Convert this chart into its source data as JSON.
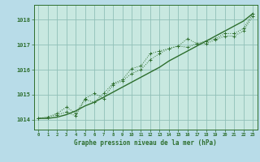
{
  "background_color": "#b8dce8",
  "plot_bg_color": "#c8e8e0",
  "grid_color": "#90c0b8",
  "line_color": "#2d6e2d",
  "xlabel": "Graphe pression niveau de la mer (hPa)",
  "xlim": [
    -0.5,
    23.5
  ],
  "ylim": [
    1013.6,
    1018.6
  ],
  "yticks": [
    1014,
    1015,
    1016,
    1017,
    1018
  ],
  "xticks": [
    0,
    1,
    2,
    3,
    4,
    5,
    6,
    7,
    8,
    9,
    10,
    11,
    12,
    13,
    14,
    15,
    16,
    17,
    18,
    19,
    20,
    21,
    22,
    23
  ],
  "series1": [
    1014.05,
    1014.1,
    1014.2,
    1014.3,
    1014.15,
    1014.8,
    1014.7,
    1015.05,
    1015.45,
    1015.6,
    1016.05,
    1016.15,
    1016.65,
    1016.75,
    1016.85,
    1016.95,
    1017.25,
    1017.05,
    1017.15,
    1017.25,
    1017.45,
    1017.45,
    1017.65,
    1018.25
  ],
  "series2": [
    1014.05,
    1014.1,
    1014.25,
    1014.5,
    1014.25,
    1014.85,
    1015.05,
    1014.85,
    1015.4,
    1015.55,
    1015.85,
    1016.0,
    1016.4,
    1016.65,
    1016.85,
    1016.95,
    1016.9,
    1017.05,
    1017.05,
    1017.2,
    1017.35,
    1017.35,
    1017.55,
    1018.15
  ],
  "series3": [
    1014.05,
    1014.05,
    1014.1,
    1014.2,
    1014.35,
    1014.55,
    1014.7,
    1014.9,
    1015.1,
    1015.3,
    1015.5,
    1015.7,
    1015.9,
    1016.1,
    1016.35,
    1016.55,
    1016.75,
    1016.95,
    1017.15,
    1017.35,
    1017.55,
    1017.75,
    1017.95,
    1018.25
  ]
}
